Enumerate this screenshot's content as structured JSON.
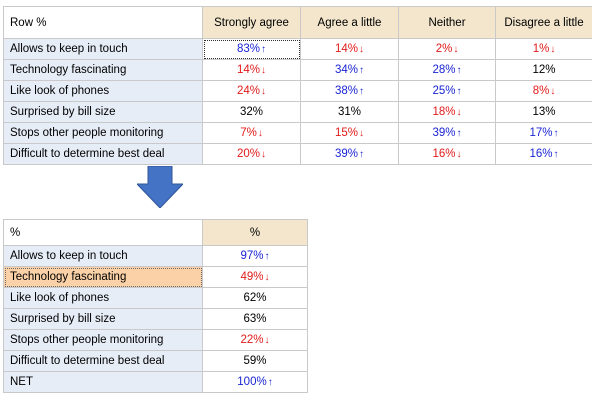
{
  "top_table": {
    "corner_label": "Row %",
    "columns": [
      "Strongly agree",
      "Agree a little",
      "Neither",
      "Disagree a little"
    ],
    "rows": [
      {
        "label": "Allows to keep in touch",
        "cells": [
          {
            "text": "83%",
            "dir": "up"
          },
          {
            "text": "14%",
            "dir": "down"
          },
          {
            "text": "2%",
            "dir": "down"
          },
          {
            "text": "1%",
            "dir": "down"
          }
        ]
      },
      {
        "label": "Technology fascinating",
        "cells": [
          {
            "text": "14%",
            "dir": "down"
          },
          {
            "text": "34%",
            "dir": "up"
          },
          {
            "text": "28%",
            "dir": "up"
          },
          {
            "text": "12%",
            "dir": "none"
          }
        ]
      },
      {
        "label": "Like look of phones",
        "cells": [
          {
            "text": "24%",
            "dir": "down"
          },
          {
            "text": "38%",
            "dir": "up"
          },
          {
            "text": "25%",
            "dir": "up"
          },
          {
            "text": "8%",
            "dir": "down"
          }
        ]
      },
      {
        "label": "Surprised by bill size",
        "cells": [
          {
            "text": "32%",
            "dir": "none"
          },
          {
            "text": "31%",
            "dir": "none"
          },
          {
            "text": "18%",
            "dir": "down"
          },
          {
            "text": "13%",
            "dir": "none"
          }
        ]
      },
      {
        "label": "Stops other people monitoring",
        "cells": [
          {
            "text": "7%",
            "dir": "down"
          },
          {
            "text": "15%",
            "dir": "down"
          },
          {
            "text": "39%",
            "dir": "up"
          },
          {
            "text": "17%",
            "dir": "up"
          }
        ]
      },
      {
        "label": "Difficult to determine best deal",
        "cells": [
          {
            "text": "20%",
            "dir": "down"
          },
          {
            "text": "39%",
            "dir": "up"
          },
          {
            "text": "16%",
            "dir": "down"
          },
          {
            "text": "16%",
            "dir": "up"
          }
        ]
      }
    ]
  },
  "bottom_table": {
    "corner_label": "%",
    "columns": [
      "%"
    ],
    "rows": [
      {
        "label": "Allows to keep in touch",
        "cells": [
          {
            "text": "97%",
            "dir": "up"
          }
        ]
      },
      {
        "label": "Technology fascinating",
        "cells": [
          {
            "text": "49%",
            "dir": "down"
          }
        ],
        "selected": true
      },
      {
        "label": "Like look of phones",
        "cells": [
          {
            "text": "62%",
            "dir": "none"
          }
        ]
      },
      {
        "label": "Surprised by bill size",
        "cells": [
          {
            "text": "63%",
            "dir": "none"
          }
        ]
      },
      {
        "label": "Stops other people monitoring",
        "cells": [
          {
            "text": "22%",
            "dir": "down"
          }
        ]
      },
      {
        "label": "Difficult to determine best deal",
        "cells": [
          {
            "text": "59%",
            "dir": "none"
          }
        ]
      },
      {
        "label": "NET",
        "cells": [
          {
            "text": "100%",
            "dir": "up"
          }
        ]
      }
    ]
  },
  "arrow_glyphs": {
    "up": "↑",
    "down": "↓"
  },
  "colors": {
    "up": "#1a25d3",
    "down": "#e11a1a",
    "header_bg": "#f3e6cc",
    "row_label_bg": "#e6edf7",
    "selected_bg": "#fbd2a8",
    "arrow_fill": "#4472c4"
  },
  "icons": {
    "transition_arrow": "down-arrow-icon"
  }
}
